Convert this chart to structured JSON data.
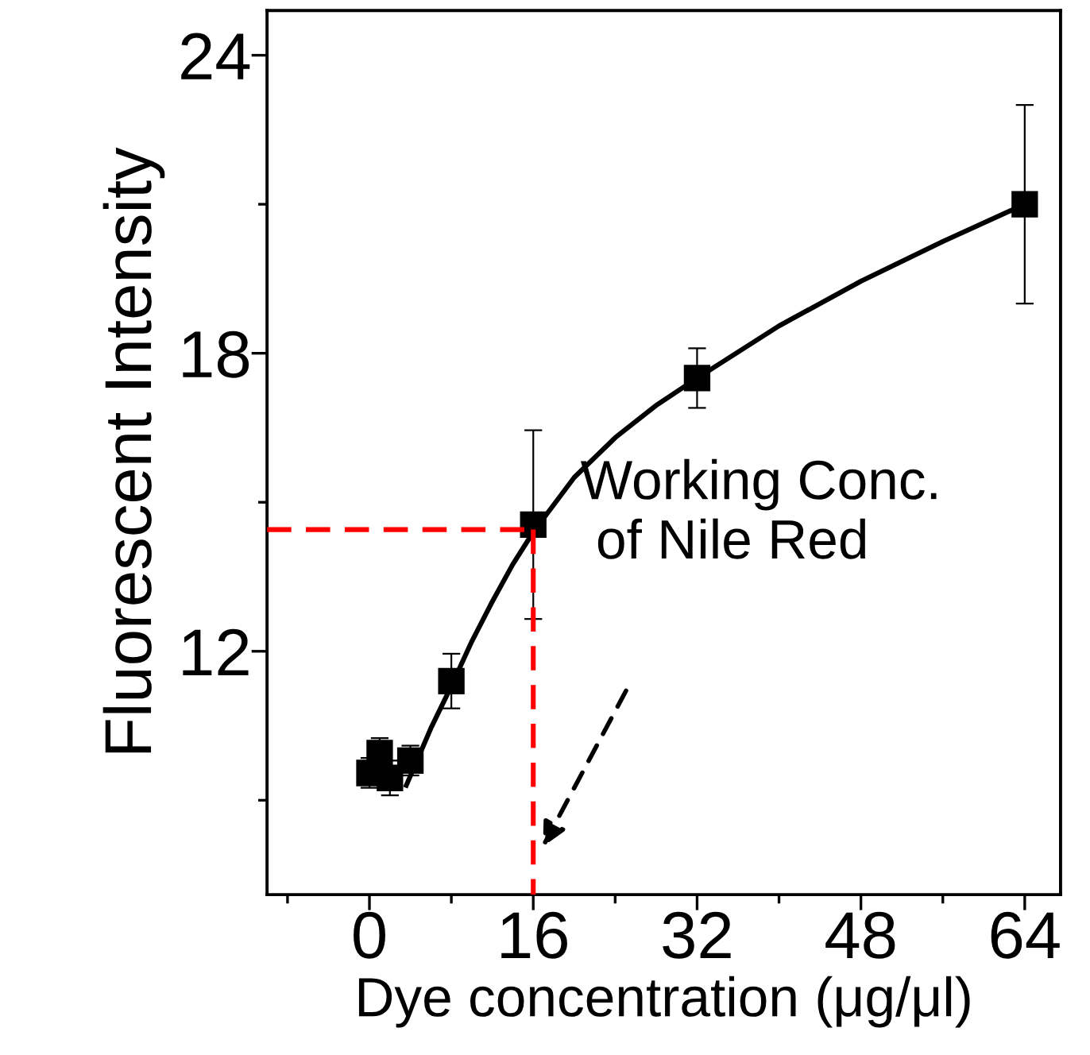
{
  "chart_data": {
    "type": "scatter",
    "xlabel": "Dye concentration (μg/μl)",
    "ylabel": "Fluorescent Intensity",
    "xlim": [
      -10,
      67.5
    ],
    "ylim": [
      7.1,
      24.9
    ],
    "xticks": [
      {
        "value": -8,
        "label": null
      },
      0,
      {
        "value": 8,
        "label": null
      },
      16,
      {
        "value": 24,
        "label": null
      },
      32,
      {
        "value": 40,
        "label": null
      },
      48,
      {
        "value": 56,
        "label": null
      },
      64
    ],
    "yticks": [
      {
        "value": 9,
        "label": null
      },
      12,
      {
        "value": 15,
        "label": null
      },
      18,
      {
        "value": 21,
        "label": null
      },
      24
    ],
    "grid": false,
    "legend": false,
    "series": [
      {
        "color": "#000000",
        "marker": "square",
        "x": [
          0,
          1,
          2,
          4,
          8,
          16,
          32,
          64
        ],
        "values": [
          9.55,
          9.95,
          9.45,
          9.8,
          11.4,
          14.55,
          17.5,
          21.0
        ],
        "errors": [
          0.3,
          0.3,
          0.35,
          0.3,
          0.55,
          1.9,
          0.6,
          2.0
        ]
      },
      {
        "type": "line",
        "color": "#000000",
        "line_style": "solid",
        "x": [
          3.6,
          6,
          8,
          10,
          12,
          14,
          16,
          20,
          24,
          28,
          32,
          40,
          48,
          56,
          64
        ],
        "values": [
          9.3,
          10.45,
          11.3,
          12.2,
          13.0,
          13.75,
          14.4,
          15.5,
          16.3,
          16.95,
          17.5,
          18.55,
          19.45,
          20.25,
          21.0
        ]
      },
      {
        "type": "line",
        "color": "#ff0000",
        "line_style": "dashed",
        "x": [
          -10,
          16
        ],
        "values": [
          14.45,
          14.45
        ]
      },
      {
        "type": "line",
        "color": "#ff0000",
        "line_style": "dashed",
        "x": [
          16,
          16
        ],
        "values": [
          14.45,
          7.1
        ]
      }
    ],
    "annotations": [
      "Working Conc.\n of Nile Red"
    ]
  }
}
